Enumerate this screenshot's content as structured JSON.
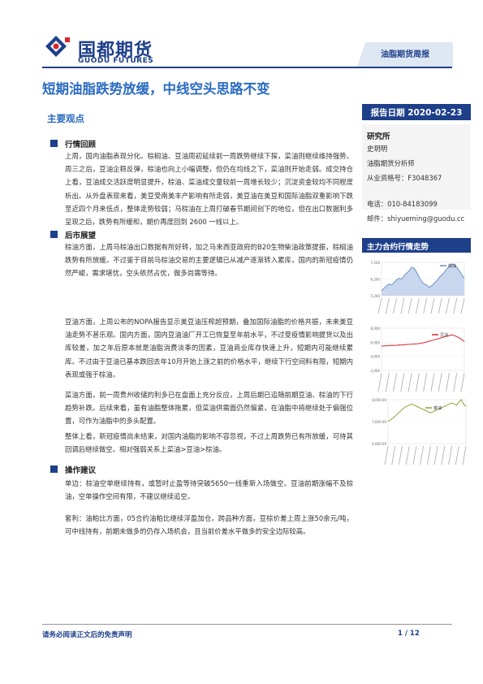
{
  "header": {
    "logo_cn": "国都期货",
    "logo_en": "GUODU FUTURES",
    "report_type": "油脂期货周报"
  },
  "title": "短期油脂跌势放缓，中线空头思路不变",
  "report_date": "报告日期  2020-02-23",
  "key_points_title": "主要观点",
  "sections": [
    {
      "heading": "行情回顾",
      "paragraphs": [
        "上周，国内油脂表现分化。棕榈油、豆油周初延续前一周跌势继续下探，菜油则继续维持强势。周三之后，豆油企稳反弹，棕油也向上小幅调整，但仍在均线之下，菜油则开始走弱。成交持仓上看，豆油成交活跃度明显提升，棕油、菜油成交量较前一周增长较少；沉淀资金较均不同程度析出。从外盘表现来看，美豆受南美丰产影响有所走弱，美豆油在美豆和国际油脂双重影响下跌至近四个月来低点，整体走势较弱；马棕油在上周打破春节期间创下的地位，但在出口数据利多呈现之后，跌势有所缓和，期价再度回到 2600 一线以上。"
      ]
    },
    {
      "heading": "后市展望",
      "paragraphs": [
        "棕油方面，上周马棕油出口数据有所好转，加之马来西亚政府的B20生物柴油政策提振，棕榈油跌势有所放缓。不过鉴于目前马棕油交易的主要逻辑已从减产逐渐转入累库，国内的新冠疫情仍然严峻，需求堪忧，空头依然占优，做多尚需等待。",
        "豆油方面，上周公布的NOPA报告显示美豆油压榨超预期，叠加国际油脂的价格共振，未来美豆油走势不甚乐观。国内方面，国内豆油油厂开工已恢复至年前水平，不过受疫情影响提货以及出库较差，加之年后原本就是油脂消费淡季的因素，豆油商业库存快速上升，短期内可能继续累库。不过由于豆油已基本跌回去年10月开始上涨之前的价格水平，继续下行空间料有限，短期内表现或强于棕油。",
        "菜油方面，前一周贵州收储的利多已在盘面上充分反应，上周后期已追随前期豆油、棕油的下行趋势补跌。后续来看，虽有油脂整体拖累，但菜油供需面仍然偏紧，在油脂中将继续处于偏强位置，可作为油脂中的多头配置。",
        "整体上看，新冠疫情尚未结束，对国内油脂的影响不容忽视，不过上周跌势已有所放缓，可待其回调后继续做空。相对强弱关系上菜油>豆油>棕油。"
      ]
    },
    {
      "heading": "操作建议",
      "paragraphs": [
        "单边：棕油空单继续持有，或暂时止盈等待突破5650一线重新入场做空。豆油前期涨幅不及棕油，空单操作空间有限，不建议继续追空。",
        "套利：油粕比方面，05合约油粕比继续浮盈加仓。跨品种方面，豆棕价差上周上涨50余元/吨，可中线持有，前期未做多的仍存入场机会，且当前价差水平做多的安全边际较高。"
      ]
    }
  ],
  "research": {
    "title": "研究所",
    "name": "史玥明",
    "role": "油脂期货分析师",
    "license": "从业资格号：F3048367",
    "phone": "电话：010-84183099",
    "email": "邮件：shiyueming@guodu.cc"
  },
  "charts_title": "主力合约行情走势",
  "footer": {
    "disclaimer": "请务必阅读正文后的免责声明",
    "page": "1 / 12"
  },
  "colors": {
    "brand": "#1e3f8a",
    "title": "#2a6bc1"
  },
  "chart_data": [
    {
      "type": "line",
      "series": [
        {
          "name": "棕油",
          "values": [
            5500,
            5650,
            5800,
            5900,
            5850,
            6000,
            6150,
            6250,
            6200,
            6400,
            6550,
            6700,
            6900,
            6850,
            6600,
            6300,
            6050,
            5900,
            5850,
            5700,
            5800,
            5950,
            6100,
            6300,
            6450,
            6600,
            6800,
            6950,
            7100,
            7050,
            6900,
            6700,
            6450,
            6250
          ]
        }
      ],
      "ylim": [
        5200,
        7200
      ],
      "yticks": [
        "5,200",
        "6,200",
        "7,200"
      ]
    },
    {
      "type": "line",
      "series": [
        {
          "name": "豆油",
          "values": [
            5450,
            5500,
            5480,
            5520,
            5560,
            5540,
            5580,
            5620,
            5600,
            5650,
            5680,
            5700,
            5720,
            5760,
            5780,
            5820,
            5880,
            5950,
            6050,
            6150,
            6250,
            6350,
            6450,
            6550,
            6650,
            6750,
            6850,
            6950,
            7050,
            6950,
            6800,
            6600,
            6400,
            6100
          ]
        }
      ],
      "ylim": [
        2000,
        8000
      ],
      "yticks": [
        "2,000",
        "4,000",
        "6,000",
        "8,000"
      ]
    },
    {
      "type": "line",
      "series": [
        {
          "name": "菜油",
          "values": [
            7000,
            7080,
            7150,
            7250,
            7350,
            7450,
            7550,
            7650,
            7700,
            7750,
            7800,
            7750,
            7700,
            7650,
            7600,
            7550,
            7500,
            7450,
            7400,
            7450,
            7500,
            7550,
            7600,
            7650,
            7700,
            7750,
            7800,
            7850,
            7800,
            7750,
            7900,
            8000,
            7800,
            7700
          ]
        }
      ],
      "ylim": [
        6000,
        8000
      ],
      "yticks": [
        "6,000.00",
        "7,000.00",
        "8,000.00"
      ]
    }
  ]
}
